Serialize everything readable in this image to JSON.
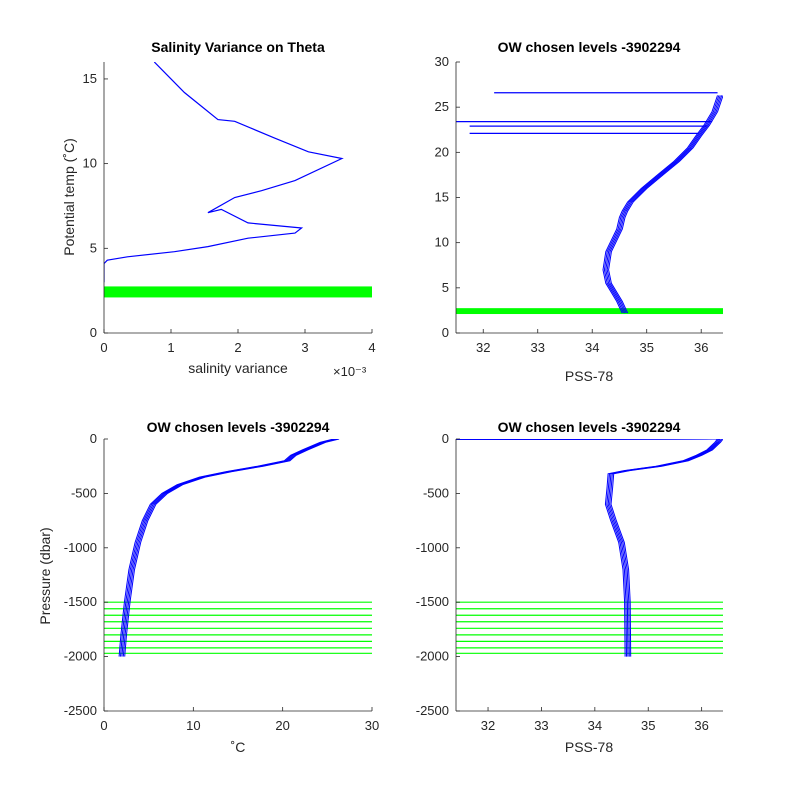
{
  "chart_data": [
    {
      "type": "line",
      "title": "Salinity Variance on Theta",
      "xlabel": "salinity variance",
      "ylabel": "Potential temp (˚C)",
      "x_exponent_label": "×10⁻³",
      "xlim": [
        0,
        4
      ],
      "ylim": [
        0,
        16
      ],
      "xticks": [
        "0",
        "1",
        "2",
        "3",
        "4"
      ],
      "yticks": [
        "0",
        "5",
        "10",
        "15"
      ],
      "series": [
        {
          "color": "#0000ff",
          "x": [
            0.75,
            1.0,
            1.2,
            1.45,
            1.7,
            1.95,
            2.55,
            3.05,
            3.55,
            2.85,
            2.35,
            1.95,
            1.55,
            1.75,
            2.15,
            2.95,
            2.85,
            2.15,
            1.55,
            1.05,
            0.35,
            0.05,
            0.0,
            0.0
          ],
          "y": [
            16.0,
            15.0,
            14.2,
            13.4,
            12.6,
            12.5,
            11.5,
            10.7,
            10.3,
            9.0,
            8.4,
            8.0,
            7.1,
            7.3,
            6.5,
            6.2,
            5.9,
            5.6,
            5.1,
            4.8,
            4.5,
            4.3,
            4.1,
            3.0
          ]
        }
      ],
      "highlight_band": {
        "color": "#00ff00",
        "y_range": [
          2.1,
          2.75
        ]
      }
    },
    {
      "type": "line",
      "title": "OW chosen levels -3902294",
      "xlabel": "PSS-78",
      "ylabel": "",
      "xlim": [
        31.5,
        36.4
      ],
      "ylim": [
        0,
        30
      ],
      "xticks": [
        "32",
        "33",
        "34",
        "35",
        "36"
      ],
      "yticks": [
        "0",
        "5",
        "10",
        "15",
        "20",
        "25",
        "30"
      ],
      "series": [
        {
          "color": "#0000ff",
          "x": [
            34.6,
            34.5,
            34.3,
            34.25,
            34.3,
            34.5,
            34.55,
            34.6,
            34.7,
            34.95,
            35.25,
            35.55,
            35.8,
            35.95,
            36.1,
            36.25,
            36.35
          ],
          "y": [
            2.2,
            3.5,
            5.5,
            7.0,
            9.0,
            11.5,
            12.8,
            13.5,
            14.5,
            16.0,
            17.5,
            19.0,
            20.5,
            21.8,
            23.0,
            24.5,
            26.3
          ]
        }
      ],
      "horizontal_lines": [
        {
          "y": 26.6,
          "x_range": [
            32.2,
            36.3
          ]
        },
        {
          "y": 23.4,
          "x_range": [
            31.5,
            36.2
          ]
        },
        {
          "y": 22.9,
          "x_range": [
            31.75,
            36.1
          ]
        },
        {
          "y": 22.1,
          "x_range": [
            31.75,
            35.95
          ]
        }
      ],
      "highlight_band": {
        "color": "#00ff00",
        "y_range": [
          2.1,
          2.75
        ]
      }
    },
    {
      "type": "line",
      "title": "OW chosen levels -3902294",
      "xlabel": "˚C",
      "ylabel": "Pressure (dbar)",
      "xlim": [
        0,
        30
      ],
      "ylim": [
        -2500,
        0
      ],
      "xticks": [
        "0",
        "10",
        "20",
        "30"
      ],
      "yticks": [
        "-2500",
        "-2000",
        "-1500",
        "-1000",
        "-500",
        "0"
      ],
      "series": [
        {
          "color": "#0000ff",
          "x": [
            2.0,
            2.2,
            2.6,
            3.1,
            3.8,
            4.6,
            5.5,
            6.8,
            8.5,
            11.0,
            14.0,
            17.5,
            20.5,
            21.2,
            22.5,
            24.5,
            26.0
          ],
          "y": [
            -2000,
            -1800,
            -1500,
            -1200,
            -950,
            -750,
            -600,
            -500,
            -420,
            -350,
            -300,
            -250,
            -200,
            -150,
            -100,
            -30,
            0
          ]
        }
      ],
      "green_lines_y": [
        -1500,
        -1560,
        -1620,
        -1680,
        -1740,
        -1800,
        -1860,
        -1920,
        -1970
      ],
      "green_color": "#00ff00"
    },
    {
      "type": "line",
      "title": "OW chosen levels -3902294",
      "xlabel": "PSS-78",
      "ylabel": "",
      "xlim": [
        31.4,
        36.4
      ],
      "ylim": [
        -2500,
        0
      ],
      "xticks": [
        "32",
        "33",
        "34",
        "35",
        "36"
      ],
      "yticks": [
        "-2500",
        "-2000",
        "-1500",
        "-1000",
        "-500",
        "0"
      ],
      "series": [
        {
          "color": "#0000ff",
          "x": [
            34.62,
            34.61,
            34.58,
            34.5,
            34.35,
            34.25,
            34.28,
            34.3,
            34.6,
            35.2,
            35.7,
            35.95,
            36.15,
            36.3,
            36.35
          ],
          "y": [
            -2000,
            -1500,
            -1200,
            -950,
            -750,
            -600,
            -450,
            -320,
            -290,
            -250,
            -200,
            -150,
            -100,
            -30,
            0
          ]
        },
        {
          "color": "#0000ff",
          "x": [
            31.4,
            36.3
          ],
          "y": [
            -5,
            0
          ]
        }
      ],
      "green_lines_y": [
        -1500,
        -1560,
        -1620,
        -1680,
        -1740,
        -1800,
        -1860,
        -1920,
        -1970
      ],
      "green_color": "#00ff00"
    }
  ]
}
